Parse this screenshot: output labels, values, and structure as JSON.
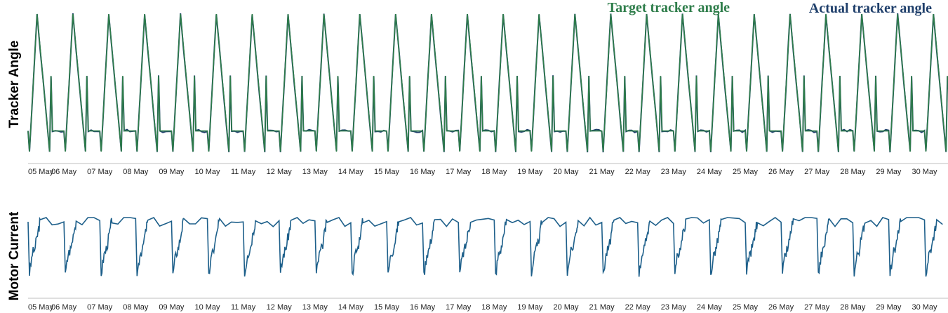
{
  "chart_data": [
    {
      "type": "line",
      "ylabel": "Tracker Angle",
      "xlabel": "",
      "x_ticks": [
        "05 May",
        "06 May",
        "07 May",
        "08 May",
        "09 May",
        "10 May",
        "11 May",
        "12 May",
        "13 May",
        "14 May",
        "15 May",
        "16 May",
        "17 May",
        "18 May",
        "19 May",
        "20 May",
        "21 May",
        "22 May",
        "23 May",
        "24 May",
        "25 May",
        "26 May",
        "27 May",
        "28 May",
        "29 May",
        "30 May"
      ],
      "legend_placement": "top-right",
      "grid": false,
      "series": [
        {
          "name": "Target tracker angle",
          "color": "#2e7d4a"
        },
        {
          "name": "Actual tracker angle",
          "color": "#1f3f6b"
        }
      ],
      "daily_cycle": {
        "description": "Repeats every day",
        "points": [
          {
            "day_fraction": 0.0,
            "value": 0.15
          },
          {
            "day_fraction": 0.04,
            "value": 0.0
          },
          {
            "day_fraction": 0.25,
            "value": 1.0
          },
          {
            "day_fraction": 0.6,
            "value": 0.0
          },
          {
            "day_fraction": 0.64,
            "value": 0.55
          },
          {
            "day_fraction": 0.68,
            "value": 0.15
          },
          {
            "day_fraction": 1.0,
            "value": 0.15
          }
        ]
      }
    },
    {
      "type": "line",
      "ylabel": "Motor Current",
      "xlabel": "",
      "x_ticks": [
        "05 May",
        "06 May",
        "07 May",
        "08 May",
        "09 May",
        "10 May",
        "11 May",
        "12 May",
        "13 May",
        "14 May",
        "15 May",
        "16 May",
        "17 May",
        "18 May",
        "19 May",
        "20 May",
        "21 May",
        "22 May",
        "23 May",
        "24 May",
        "25 May",
        "26 May",
        "27 May",
        "28 May",
        "29 May",
        "30 May"
      ],
      "grid": false,
      "series": [
        {
          "name": "",
          "color": "#1d5f8a"
        }
      ],
      "daily_cycle": {
        "description": "Repeats every day",
        "points": [
          {
            "day_fraction": 0.0,
            "value": 0.95
          },
          {
            "day_fraction": 0.04,
            "value": 0.15
          },
          {
            "day_fraction": 0.12,
            "value": 0.45
          },
          {
            "day_fraction": 0.2,
            "value": 0.55
          },
          {
            "day_fraction": 0.28,
            "value": 0.8
          },
          {
            "day_fraction": 0.34,
            "value": 0.95
          },
          {
            "day_fraction": 1.0,
            "value": 0.95
          }
        ]
      }
    }
  ]
}
